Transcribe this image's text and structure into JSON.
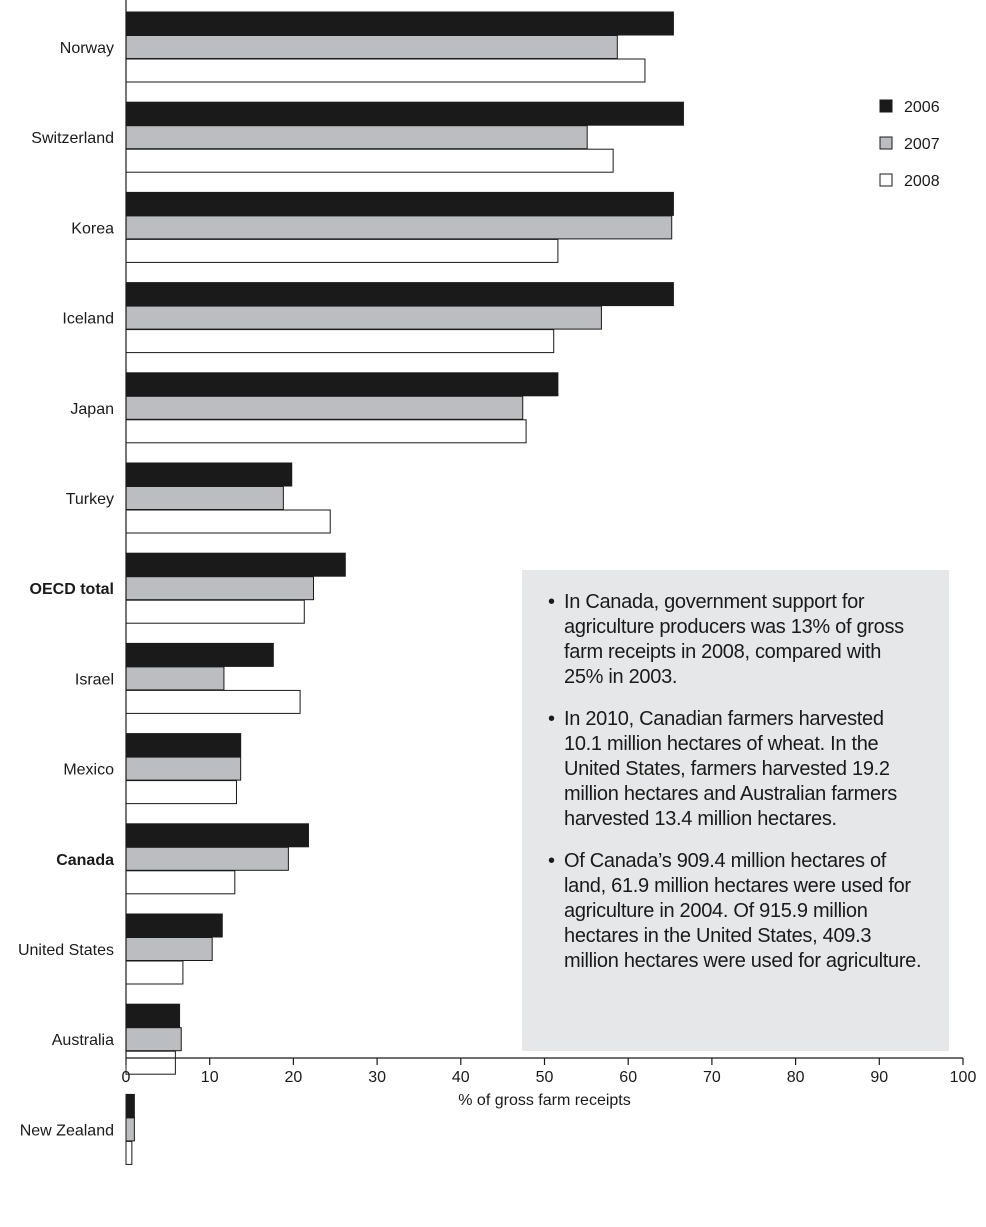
{
  "chart_data": {
    "type": "bar",
    "orientation": "horizontal",
    "categories": [
      "Norway",
      "Switzerland",
      "Korea",
      "Iceland",
      "Japan",
      "Turkey",
      "OECD total",
      "Israel",
      "Mexico",
      "Canada",
      "United States",
      "Australia",
      "New Zealand"
    ],
    "bold_categories": [
      "OECD total",
      "Canada"
    ],
    "series": [
      {
        "name": "2006",
        "color": "#1a1a1a",
        "values": [
          65.4,
          66.6,
          65.4,
          65.4,
          51.6,
          19.8,
          26.2,
          17.6,
          13.7,
          21.8,
          11.5,
          6.4,
          1.0
        ]
      },
      {
        "name": "2007",
        "color": "#bcbdc0",
        "values": [
          58.7,
          55.1,
          65.2,
          56.8,
          47.4,
          18.8,
          22.4,
          11.7,
          13.7,
          19.4,
          10.3,
          6.6,
          1.0
        ]
      },
      {
        "name": "2008",
        "color": "#ffffff",
        "values": [
          62.0,
          58.2,
          51.6,
          51.1,
          47.8,
          24.4,
          21.3,
          20.8,
          13.2,
          13.0,
          6.8,
          5.9,
          0.7
        ]
      }
    ],
    "x_ticks": [
      "0",
      "10",
      "20",
      "30",
      "40",
      "50",
      "60",
      "70",
      "80",
      "90",
      "100"
    ],
    "xlim": [
      0,
      100
    ],
    "xlabel": "% of gross farm receipts",
    "title": "",
    "grid": false,
    "legend_position": "top-right"
  },
  "notes": [
    "In Canada, government support for agriculture producers was 13% of gross farm receipts in 2008, compared with 25% in 2003.",
    "In 2010, Canadian farmers harvested 10.1 million hectares of wheat. In the United States, farmers harvested 19.2 million hectares and Australian farmers harvested 13.4 million hectares.",
    "Of Canada’s 909.4 million hectares of land, 61.9 million hectares were used for agriculture in 2004. Of 915.9 million hectares in the United States, 409.3 million hectares were used for agriculture."
  ]
}
